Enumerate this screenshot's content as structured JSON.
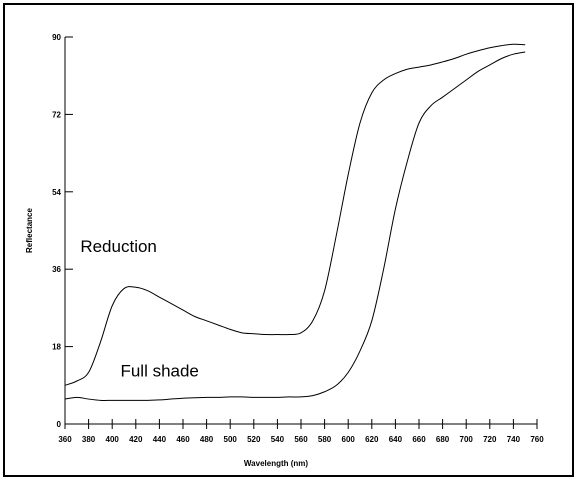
{
  "chart_data": {
    "type": "line",
    "title": "",
    "xlabel": "Wavelength (nm)",
    "ylabel": "Reflectance",
    "xlim": [
      360,
      760
    ],
    "ylim": [
      0,
      90
    ],
    "xticks": [
      360,
      380,
      400,
      420,
      440,
      460,
      480,
      500,
      520,
      540,
      560,
      580,
      600,
      620,
      640,
      660,
      680,
      700,
      720,
      740,
      760
    ],
    "yticks": [
      0,
      18,
      36,
      54,
      72,
      90
    ],
    "grid": false,
    "colors": {
      "line": "#000000",
      "axis": "#000000",
      "frame": "#000000"
    },
    "series": [
      {
        "name": "Reduction",
        "x": [
          360,
          370,
          380,
          390,
          400,
          410,
          420,
          430,
          440,
          450,
          460,
          470,
          480,
          490,
          500,
          510,
          520,
          530,
          540,
          550,
          560,
          570,
          580,
          590,
          600,
          610,
          620,
          630,
          640,
          650,
          660,
          670,
          680,
          690,
          700,
          710,
          720,
          730,
          740,
          750
        ],
        "y": [
          9,
          10,
          12,
          19,
          27.5,
          31.5,
          31.8,
          31,
          29.5,
          28,
          26.5,
          25,
          24,
          23,
          22,
          21.2,
          21,
          20.8,
          20.8,
          20.8,
          21.2,
          24,
          31,
          44,
          58,
          70,
          77,
          80,
          81.5,
          82.5,
          83,
          83.5,
          84.2,
          85,
          86,
          86.8,
          87.5,
          88,
          88.3,
          88.2
        ]
      },
      {
        "name": "Full shade",
        "x": [
          360,
          370,
          380,
          390,
          400,
          410,
          420,
          430,
          440,
          450,
          460,
          470,
          480,
          490,
          500,
          510,
          520,
          530,
          540,
          550,
          560,
          570,
          580,
          590,
          600,
          610,
          620,
          630,
          640,
          650,
          660,
          670,
          680,
          690,
          700,
          710,
          720,
          730,
          740,
          750
        ],
        "y": [
          5.8,
          6.2,
          5.8,
          5.5,
          5.5,
          5.5,
          5.5,
          5.5,
          5.6,
          5.8,
          6,
          6.1,
          6.2,
          6.2,
          6.3,
          6.3,
          6.2,
          6.2,
          6.2,
          6.3,
          6.3,
          6.6,
          7.5,
          9,
          12,
          17,
          24,
          36,
          50,
          61,
          70,
          74,
          76,
          78,
          80,
          82,
          83.5,
          85,
          86,
          86.5
        ]
      }
    ],
    "annotations": [
      "Reduction",
      "Full shade"
    ]
  }
}
